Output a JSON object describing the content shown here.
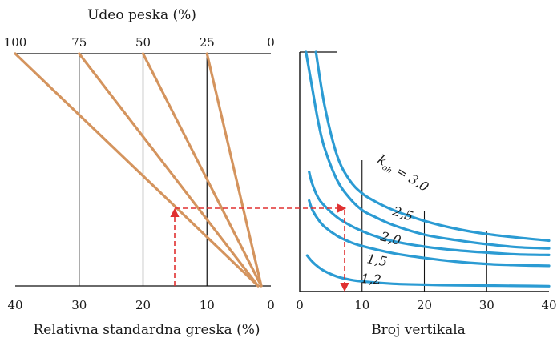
{
  "colors": {
    "nomograph_lines": "#d4945e",
    "curves": "#2b9bd3",
    "arrows": "#e03030",
    "axes": "#111111"
  },
  "chart_data": [
    {
      "type": "line",
      "panel": "left",
      "top_axis": {
        "label": "Udeo peska (%)",
        "ticks": [
          100,
          75,
          50,
          25,
          0
        ],
        "tick_labels": [
          "100",
          "75",
          "50",
          "25",
          "0"
        ]
      },
      "bottom_axis": {
        "label": "Relativna standardna greska (%)",
        "ticks": [
          40,
          30,
          20,
          10,
          0
        ],
        "tick_labels": [
          "40",
          "30",
          "20",
          "10",
          "0"
        ],
        "reversed": true
      },
      "series": [
        {
          "top_value": 100,
          "bottom_value": 2
        },
        {
          "top_value": 75,
          "bottom_value": 2
        },
        {
          "top_value": 50,
          "bottom_value": 1.5
        },
        {
          "top_value": 25,
          "bottom_value": 1.5
        }
      ]
    },
    {
      "type": "line",
      "panel": "right",
      "xlabel": "Broj vertikala",
      "xlim": [
        0,
        40
      ],
      "x_ticks": [
        0,
        10,
        20,
        30,
        40
      ],
      "x_tick_labels": [
        "0",
        "10",
        "20",
        "30",
        "40"
      ],
      "vertical_gridlines": [
        10,
        20,
        30
      ],
      "series": [
        {
          "name": "k_{oh} = 3,0",
          "label_parts": [
            "k",
            "oh",
            " = 3,0"
          ],
          "x": [
            2.6,
            4,
            6,
            8,
            10,
            12,
            15,
            20,
            25,
            30,
            35,
            40
          ],
          "y": [
            40,
            31,
            22.7,
            18.6,
            16.4,
            15.1,
            13.6,
            11.8,
            10.5,
            9.6,
            9.0,
            8.5
          ]
        },
        {
          "name": "2,5",
          "x": [
            1.0,
            2,
            3,
            4,
            6,
            8,
            10,
            12,
            15,
            20,
            25,
            30,
            35,
            40
          ],
          "y": [
            40,
            34,
            28.2,
            23.9,
            18.6,
            15.6,
            13.6,
            12.5,
            11.1,
            9.5,
            8.6,
            7.9,
            7.4,
            7.2
          ]
        },
        {
          "name": "2,0",
          "x": [
            1.5,
            2,
            3,
            4,
            6,
            8,
            10,
            12,
            15,
            20,
            25,
            30,
            35,
            40
          ],
          "y": [
            20.0,
            18.0,
            15.6,
            14.3,
            12.4,
            11.1,
            10.1,
            9.3,
            8.4,
            7.5,
            6.9,
            6.5,
            6.2,
            6.1
          ]
        },
        {
          "name": "1,5",
          "x": [
            1.5,
            2,
            3,
            4,
            6,
            8,
            10,
            15,
            20,
            25,
            30,
            35,
            40
          ],
          "y": [
            15.2,
            13.7,
            12.0,
            10.8,
            9.3,
            8.3,
            7.6,
            6.4,
            5.6,
            5.0,
            4.6,
            4.4,
            4.3
          ]
        },
        {
          "name": "1,2",
          "x": [
            1.2,
            2,
            3,
            4,
            6,
            8,
            10,
            15,
            20,
            25,
            30,
            35,
            40
          ],
          "y": [
            6.0,
            5.0,
            4.1,
            3.4,
            2.5,
            2.0,
            1.7,
            1.3,
            1.15,
            1.05,
            1.0,
            0.95,
            0.9
          ]
        }
      ],
      "labels": [
        "k",
        "oh",
        " = 3,0",
        "2,5",
        "2,0",
        "1,5",
        "1,2"
      ]
    }
  ],
  "example_path": {
    "start_error_pct": 15,
    "sand_pct_line": 50,
    "target_curve": "2,5",
    "result_verticals": 7
  }
}
